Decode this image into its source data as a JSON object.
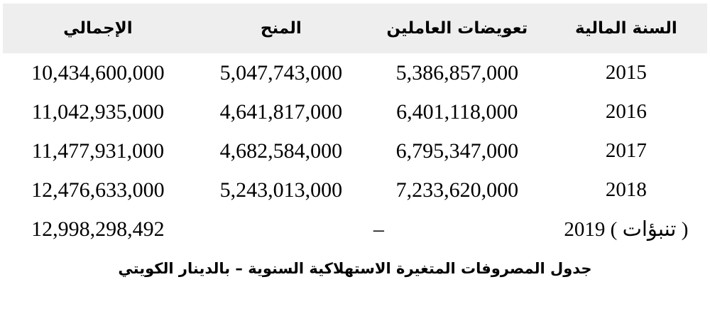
{
  "table": {
    "columns": [
      {
        "key": "year",
        "label": "السنة المالية"
      },
      {
        "key": "compensation",
        "label": "تعويضات العاملين"
      },
      {
        "key": "grants",
        "label": "المنح"
      },
      {
        "key": "total",
        "label": "الإجمالي"
      }
    ],
    "rows": [
      {
        "year": "2015",
        "compensation": "5,386,857,000",
        "grants": "5,047,743,000",
        "total": "10,434,600,000"
      },
      {
        "year": "2016",
        "compensation": "6,401,118,000",
        "grants": "4,641,817,000",
        "total": "11,042,935,000"
      },
      {
        "year": "2017",
        "compensation": "6,795,347,000",
        "grants": "4,682,584,000",
        "total": "11,477,931,000"
      },
      {
        "year": "2018",
        "compensation": "7,233,620,000",
        "grants": "5,243,013,000",
        "total": "12,476,633,000"
      },
      {
        "year": "( تنبؤات ) 2019",
        "compensation": "–",
        "grants": "",
        "total": "12,998,298,492"
      }
    ],
    "caption": "جدول المصروفات المتغيرة الاستهلاكية السنوية – بالدينار الكويتي"
  },
  "colors": {
    "header_background": "#eeeeee",
    "text": "#000000",
    "page_background": "#ffffff"
  }
}
